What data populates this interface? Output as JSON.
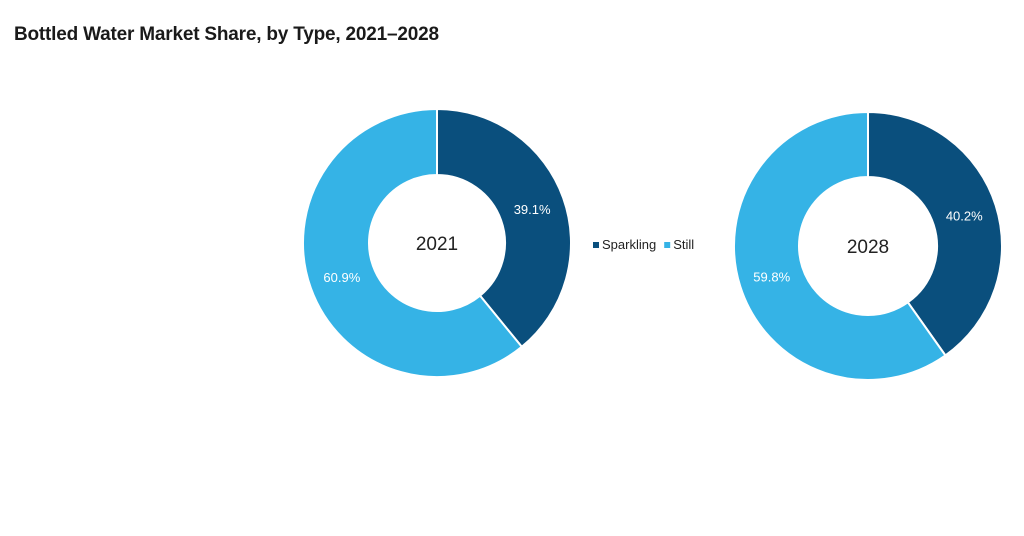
{
  "chart_data": {
    "type": "pie",
    "title": "Bottled Water Market Share, by Type, 2021–2028",
    "legend_position": "center",
    "series_names": [
      "Sparkling",
      "Still"
    ],
    "colors": {
      "Sparkling": "#0a4f7d",
      "Still": "#35b3e6"
    },
    "charts": [
      {
        "center_label": "2021",
        "slices": [
          {
            "name": "Sparkling",
            "value": 39.1,
            "label": "39.1%"
          },
          {
            "name": "Still",
            "value": 60.9,
            "label": "60.9%"
          }
        ]
      },
      {
        "center_label": "2028",
        "slices": [
          {
            "name": "Sparkling",
            "value": 40.2,
            "label": "40.2%"
          },
          {
            "name": "Still",
            "value": 59.8,
            "label": "59.8%"
          }
        ]
      }
    ]
  }
}
